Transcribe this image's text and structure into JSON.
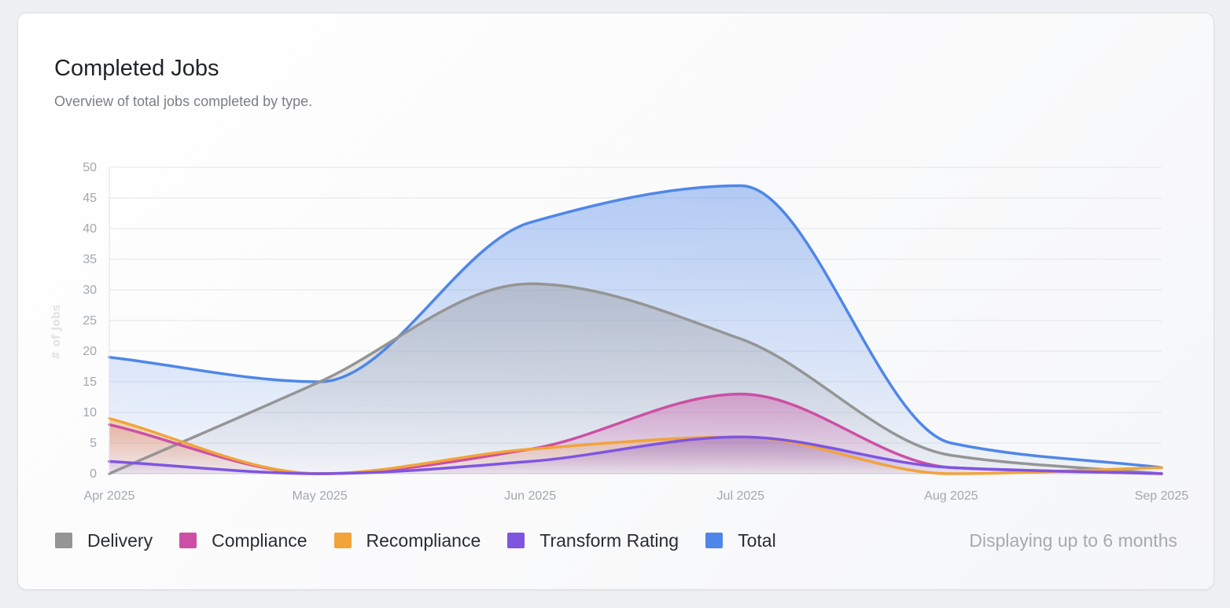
{
  "card": {
    "title": "Completed Jobs",
    "subtitle": "Overview of total jobs completed by type.",
    "note": "Displaying up to 6 months"
  },
  "chart_data": {
    "type": "area",
    "categories": [
      "Apr 2025",
      "May 2025",
      "Jun 2025",
      "Jul 2025",
      "Aug 2025",
      "Sep 2025"
    ],
    "ylabel": "# of Jobs",
    "ylim": [
      0,
      50
    ],
    "yticks": [
      0,
      5,
      10,
      15,
      20,
      25,
      30,
      35,
      40,
      45,
      50
    ],
    "grid": true,
    "legend": "bottom-left",
    "series": [
      {
        "name": "Delivery",
        "color": "#959595",
        "values": [
          0,
          15,
          31,
          22,
          3,
          0
        ]
      },
      {
        "name": "Compliance",
        "color": "#cc4fa5",
        "values": [
          8,
          0,
          4,
          13,
          1,
          0
        ]
      },
      {
        "name": "Recompliance",
        "color": "#f2a33a",
        "values": [
          9,
          0,
          4,
          6,
          0,
          1
        ]
      },
      {
        "name": "Transform Rating",
        "color": "#7f55e0",
        "values": [
          2,
          0,
          2,
          6,
          1,
          0
        ]
      },
      {
        "name": "Total",
        "color": "#4f87e8",
        "values": [
          19,
          15,
          41,
          47,
          5,
          1
        ]
      }
    ]
  }
}
